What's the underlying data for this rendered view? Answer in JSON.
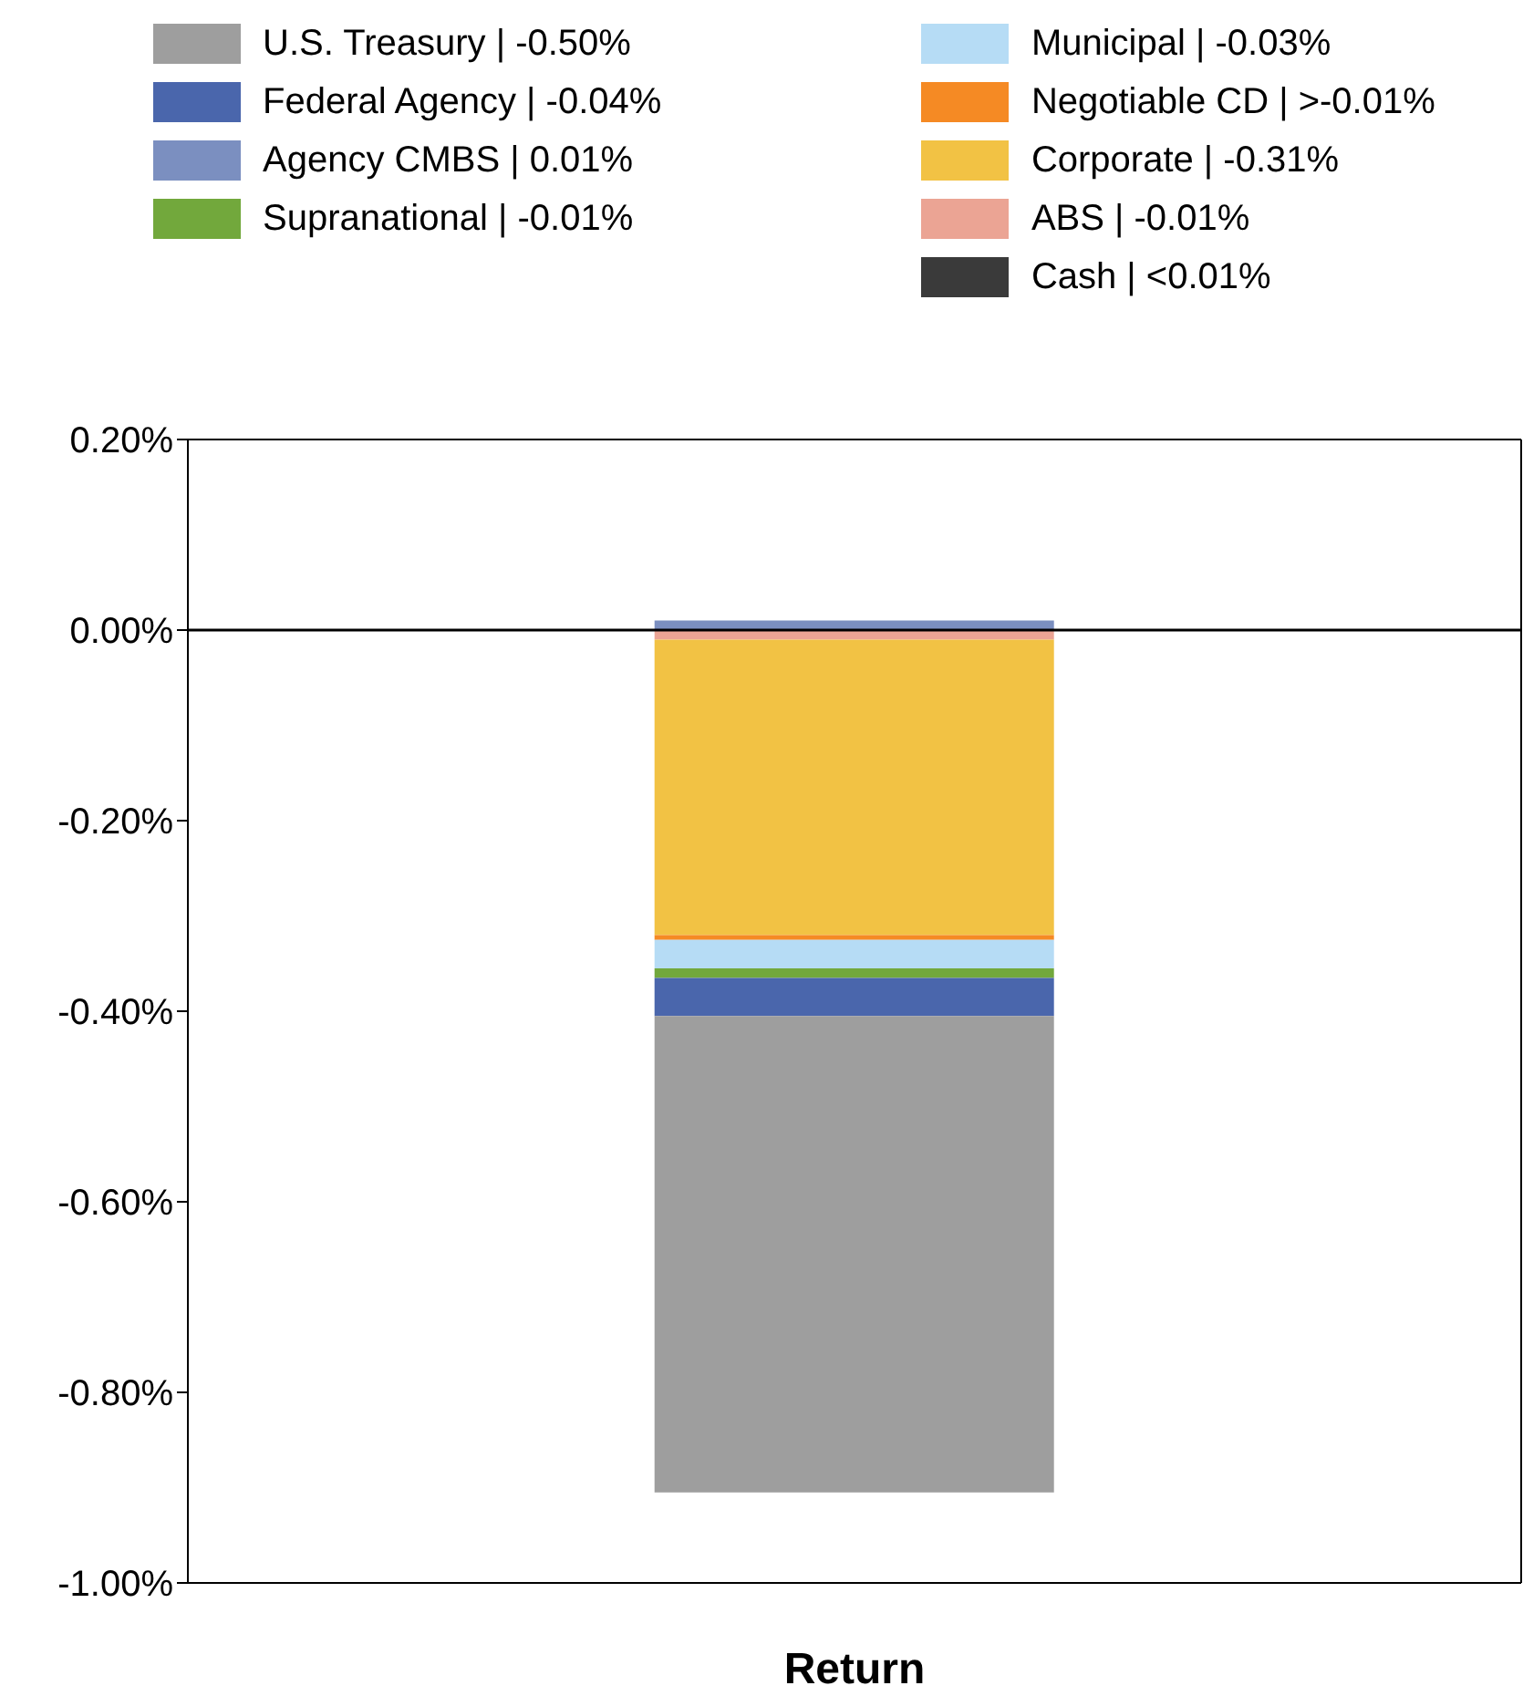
{
  "chart_data": {
    "type": "bar",
    "stacked": true,
    "categories": [
      "Return"
    ],
    "series": [
      {
        "name": "Cash | <0.01%",
        "color": "#3a3a3a",
        "values": [
          null
        ]
      },
      {
        "name": "ABS | -0.01%",
        "color": "#eba494",
        "values": [
          -0.01
        ]
      },
      {
        "name": "Corporate | -0.31%",
        "color": "#f2c244",
        "values": [
          -0.31
        ]
      },
      {
        "name": "Negotiable CD | >-0.01%",
        "color": "#f58a24",
        "values": [
          -0.005
        ]
      },
      {
        "name": "Municipal | -0.03%",
        "color": "#b6dcf5",
        "values": [
          -0.03
        ]
      },
      {
        "name": "Supranational | -0.01%",
        "color": "#72a83c",
        "values": [
          -0.01
        ]
      },
      {
        "name": "Agency CMBS | 0.01%",
        "color": "#7b8fc0",
        "values": [
          0.01
        ]
      },
      {
        "name": "Federal Agency | -0.04%",
        "color": "#4a66ac",
        "values": [
          -0.04
        ]
      },
      {
        "name": "U.S. Treasury | -0.50%",
        "color": "#9e9e9e",
        "values": [
          -0.5
        ]
      }
    ],
    "ylim": [
      -1.0,
      0.2
    ],
    "yticks": [
      {
        "value": 0.2,
        "label": "0.20%"
      },
      {
        "value": 0,
        "label": "0.00%"
      },
      {
        "value": -0.2,
        "label": "-0.20%"
      },
      {
        "value": -0.4,
        "label": "-0.40%"
      },
      {
        "value": -0.6,
        "label": "-0.60%"
      },
      {
        "value": -0.8,
        "label": "-0.80%"
      },
      {
        "value": -1.0,
        "label": "-1.00%"
      }
    ],
    "ref_lines": [
      {
        "axis": "y",
        "value": 0,
        "color": "#000000"
      }
    ],
    "grid": false,
    "legend": "top"
  }
}
